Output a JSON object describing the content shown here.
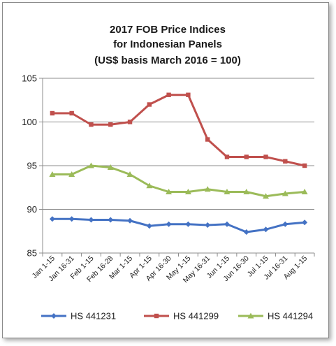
{
  "chart_data": {
    "type": "line",
    "title_lines": [
      "2017 FOB Price Indices",
      "for Indonesian Panels",
      "(US$ basis March 2016 = 100)"
    ],
    "xlabel": "",
    "ylabel": "",
    "categories": [
      "Jan 1-15",
      "Jan 16-31",
      "Feb 1-15",
      "Feb 16-28",
      "Mar 1-15",
      "Apr 1-15",
      "Apr 16-30",
      "May 1-15",
      "May 16-31",
      "Jun 1-15",
      "Jun 16-30",
      "Jul 1-15",
      "Jul 16-31",
      "Aug 1-15"
    ],
    "ylim": [
      85,
      105
    ],
    "yticks": [
      85,
      90,
      95,
      100,
      105
    ],
    "grid": "horizontal",
    "legend_position": "bottom",
    "series": [
      {
        "name": "HS 441231",
        "color": "#4472c4",
        "marker": "diamond",
        "values": [
          88.9,
          88.9,
          88.8,
          88.8,
          88.7,
          88.1,
          88.3,
          88.3,
          88.2,
          88.3,
          87.4,
          87.7,
          88.3,
          88.5
        ]
      },
      {
        "name": "HS 441299",
        "color": "#c0504d",
        "marker": "square",
        "values": [
          101.0,
          101.0,
          99.7,
          99.7,
          100.0,
          102.0,
          103.1,
          103.1,
          98.0,
          96.0,
          96.0,
          96.0,
          95.5,
          95.0
        ]
      },
      {
        "name": "HS 441294",
        "color": "#9bbb59",
        "marker": "triangle",
        "values": [
          94.0,
          94.0,
          95.0,
          94.8,
          94.0,
          92.7,
          92.0,
          92.0,
          92.3,
          92.0,
          92.0,
          91.5,
          91.8,
          92.0
        ]
      }
    ]
  }
}
